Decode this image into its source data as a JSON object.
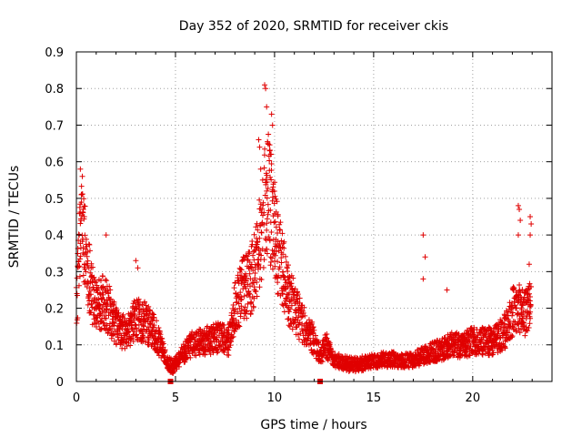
{
  "chart_data": {
    "type": "scatter",
    "title": "Day 352 of 2020, SRMTID for receiver ckis",
    "xlabel": "GPS time / hours",
    "ylabel": "SRMTID / TECUs",
    "xlim": [
      0,
      24
    ],
    "ylim": [
      0,
      0.9
    ],
    "xticks": [
      "0",
      "5",
      "10",
      "15",
      "20"
    ],
    "yticks": [
      "0",
      "0.1",
      "0.2",
      "0.3",
      "0.4",
      "0.5",
      "0.6",
      "0.7",
      "0.8",
      "0.9"
    ],
    "grid": true,
    "marker": "plus",
    "color": "#e00000",
    "series": [
      {
        "name": "SRMTID",
        "trend_x": [
          0.0,
          0.1,
          0.25,
          0.4,
          0.6,
          0.8,
          1.0,
          1.3,
          1.6,
          2.0,
          2.5,
          3.0,
          3.5,
          4.0,
          4.3,
          4.6,
          4.9,
          5.3,
          5.8,
          6.5,
          7.2,
          7.7,
          8.0,
          8.4,
          8.8,
          9.1,
          9.3,
          9.5,
          9.7,
          9.9,
          10.1,
          10.4,
          10.7,
          11.0,
          11.5,
          11.9,
          12.3,
          12.6,
          13.0,
          13.5,
          14.0,
          14.5,
          15.0,
          15.5,
          16.0,
          16.5,
          17.0,
          17.5,
          18.0,
          18.5,
          19.0,
          19.5,
          20.0,
          20.5,
          21.0,
          21.5,
          21.8,
          22.0,
          22.3,
          22.6,
          22.9
        ],
        "trend_y": [
          0.2,
          0.3,
          0.42,
          0.38,
          0.3,
          0.24,
          0.2,
          0.22,
          0.2,
          0.15,
          0.13,
          0.17,
          0.16,
          0.13,
          0.09,
          0.05,
          0.04,
          0.07,
          0.1,
          0.11,
          0.12,
          0.11,
          0.2,
          0.25,
          0.28,
          0.33,
          0.4,
          0.48,
          0.52,
          0.45,
          0.38,
          0.3,
          0.24,
          0.2,
          0.15,
          0.12,
          0.07,
          0.1,
          0.06,
          0.05,
          0.045,
          0.05,
          0.055,
          0.06,
          0.06,
          0.055,
          0.06,
          0.07,
          0.08,
          0.09,
          0.1,
          0.1,
          0.11,
          0.11,
          0.11,
          0.13,
          0.15,
          0.19,
          0.2,
          0.18,
          0.2
        ],
        "highlights": [
          [
            0.2,
            0.58
          ],
          [
            0.3,
            0.56
          ],
          [
            0.25,
            0.51
          ],
          [
            0.4,
            0.45
          ],
          [
            0.35,
            0.47
          ],
          [
            1.5,
            0.4
          ],
          [
            3.0,
            0.33
          ],
          [
            3.1,
            0.31
          ],
          [
            9.5,
            0.81
          ],
          [
            9.55,
            0.8
          ],
          [
            9.6,
            0.75
          ],
          [
            9.85,
            0.73
          ],
          [
            9.9,
            0.7
          ],
          [
            9.2,
            0.66
          ],
          [
            9.25,
            0.64
          ],
          [
            9.75,
            0.63
          ],
          [
            9.8,
            0.62
          ],
          [
            9.3,
            0.58
          ],
          [
            9.4,
            0.55
          ],
          [
            9.6,
            0.52
          ],
          [
            17.5,
            0.4
          ],
          [
            17.6,
            0.34
          ],
          [
            17.5,
            0.28
          ],
          [
            18.7,
            0.25
          ],
          [
            22.3,
            0.48
          ],
          [
            22.35,
            0.47
          ],
          [
            22.4,
            0.44
          ],
          [
            22.3,
            0.4
          ],
          [
            22.9,
            0.45
          ],
          [
            22.95,
            0.43
          ],
          [
            22.9,
            0.4
          ],
          [
            22.85,
            0.32
          ]
        ]
      }
    ],
    "markers_square": [
      [
        4.75,
        0.0
      ],
      [
        12.3,
        0.0
      ]
    ]
  }
}
